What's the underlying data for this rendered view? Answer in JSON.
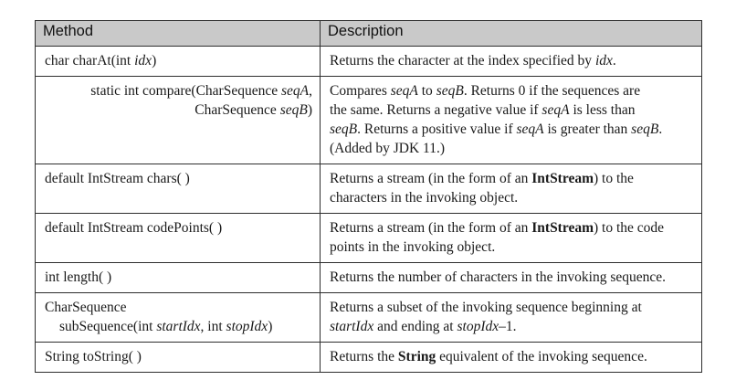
{
  "headers": {
    "method": "Method",
    "description": "Description"
  },
  "rows": [
    {
      "method": [
        "char charAt(int ",
        "idx",
        ")"
      ],
      "desc": [
        "Returns the character at the index specified by ",
        "idx",
        "."
      ]
    },
    {
      "method_l1": [
        "static int compare(CharSequence ",
        "seqA",
        ","
      ],
      "method_l2": [
        "CharSequence ",
        "seqB",
        ")"
      ],
      "desc_l1": [
        "Compares ",
        "seqA",
        " to ",
        "seqB",
        ". Returns 0 if the sequences are"
      ],
      "desc_l2": "the same. Returns a negative value if ",
      "desc_l2b": "seqA",
      "desc_l2c": " is less than",
      "desc_l3": [
        "seqB",
        ". Returns a positive value if ",
        "seqA",
        " is greater than ",
        "seqB",
        "."
      ],
      "desc_l4": "(Added by JDK 11.)"
    },
    {
      "method": "default IntStream chars( )",
      "desc_l1": [
        "Returns a stream (in the form of an ",
        "IntStream",
        ") to the"
      ],
      "desc_l2": "characters in the invoking object."
    },
    {
      "method": "default IntStream codePoints( )",
      "desc_l1": [
        "Returns a stream (in the form of an ",
        "IntStream",
        ") to the code"
      ],
      "desc_l2": "points in the invoking object."
    },
    {
      "method": "int length( )",
      "desc": "Returns the number of characters in the invoking sequence."
    },
    {
      "method_l1": "CharSequence",
      "method_l2": [
        "subSequence(int ",
        "startIdx",
        ", int ",
        "stopIdx",
        ")"
      ],
      "desc_l1": "Returns a subset of the invoking sequence beginning at",
      "desc_l2": [
        "startIdx",
        " and ending at ",
        "stopIdx",
        "–1."
      ]
    },
    {
      "method": "String toString( )",
      "desc": [
        "Returns the ",
        "String",
        " equivalent of the invoking sequence."
      ]
    }
  ]
}
